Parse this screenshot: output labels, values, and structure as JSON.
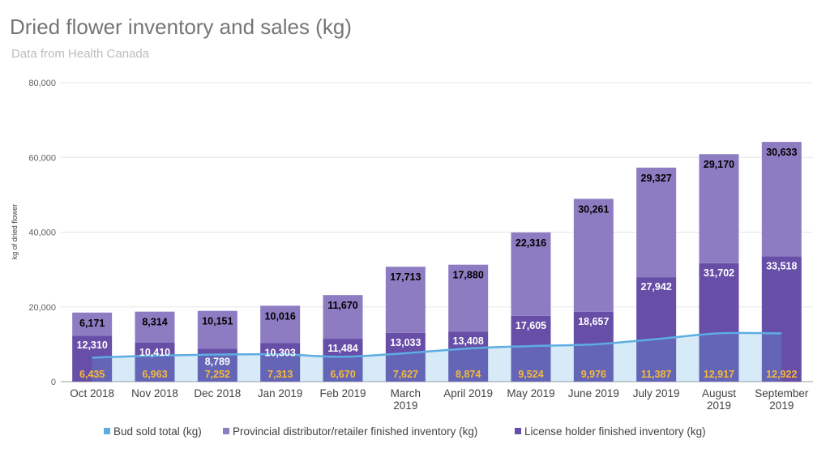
{
  "header": {
    "title": "Dried flower inventory and sales (kg)",
    "subtitle": "Data from Health Canada"
  },
  "chart_data": {
    "type": "bar",
    "title": "Dried flower inventory and sales (kg)",
    "subtitle": "Data from Health Canada",
    "ylabel": "kg of dried flower",
    "xlabel": "",
    "ylim": [
      0,
      80000
    ],
    "yticks": [
      "0",
      "20,000",
      "40,000",
      "60,000",
      "80,000"
    ],
    "grid": true,
    "legend_position": "bottom",
    "categories": [
      [
        "Oct 2018"
      ],
      [
        "Nov 2018"
      ],
      [
        "Dec 2018"
      ],
      [
        "Jan 2019"
      ],
      [
        "Feb 2019"
      ],
      [
        "March",
        "2019"
      ],
      [
        "April 2019"
      ],
      [
        "May 2019"
      ],
      [
        "June 2019"
      ],
      [
        "July 2019"
      ],
      [
        "August",
        "2019"
      ],
      [
        "September",
        "2019"
      ]
    ],
    "series": [
      {
        "name": "Bud sold total (kg)",
        "type": "area",
        "color": "#5dade2",
        "values": [
          6435,
          6963,
          7252,
          7313,
          6670,
          7627,
          8874,
          9524,
          9976,
          11387,
          12917,
          12922
        ],
        "labels": [
          "6,435",
          "6,963",
          "7,252",
          "7,313",
          "6,670",
          "7,627",
          "8,874",
          "9,524",
          "9,976",
          "11,387",
          "12,917",
          "12,922"
        ]
      },
      {
        "name": "Provincial distributor/retailer finished inventory (kg)",
        "type": "stacked-bar",
        "color": "#8e7cc3",
        "values": [
          6171,
          8314,
          10151,
          10016,
          11670,
          17713,
          17880,
          22316,
          30261,
          29327,
          29170,
          30633
        ],
        "labels": [
          "6,171",
          "8,314",
          "10,151",
          "10,016",
          "11,670",
          "17,713",
          "17,880",
          "22,316",
          "30,261",
          "29,327",
          "29,170",
          "30,633"
        ]
      },
      {
        "name": "License holder finished inventory (kg)",
        "type": "stacked-bar",
        "color": "#674ea7",
        "values": [
          12310,
          10410,
          8789,
          10303,
          11484,
          13033,
          13408,
          17605,
          18657,
          27942,
          31702,
          33518
        ],
        "labels": [
          "12,310",
          "10,410",
          "8,789",
          "10,303",
          "11,484",
          "13,033",
          "13,408",
          "17,605",
          "18,657",
          "27,942",
          "31,702",
          "33,518"
        ]
      }
    ]
  }
}
